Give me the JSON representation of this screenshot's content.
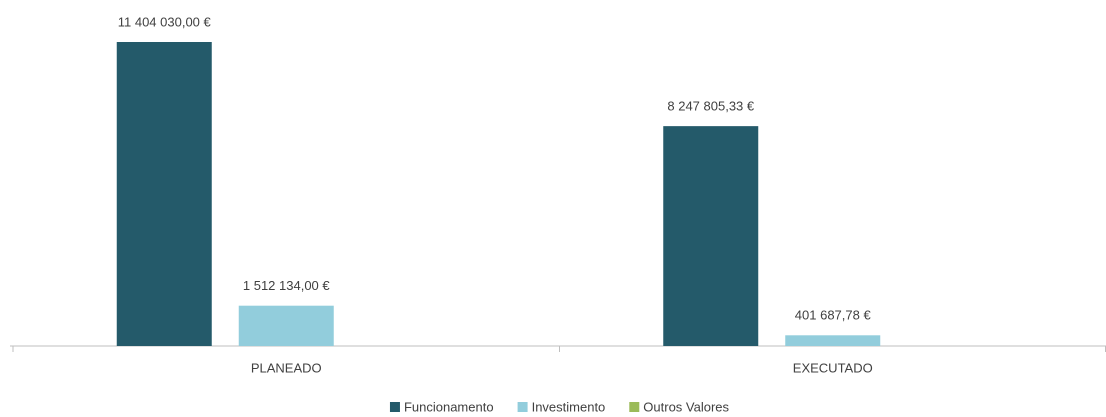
{
  "chart_data": {
    "type": "bar",
    "categories": [
      "PLANEADO",
      "EXECUTADO"
    ],
    "series": [
      {
        "name": "Funcionamento",
        "color": "#245a6a",
        "values": [
          11404030.0,
          8247805.33
        ],
        "value_labels": [
          "11 404 030,00 €",
          "8 247 805,33 €"
        ]
      },
      {
        "name": "Investimento",
        "color": "#92cddc",
        "values": [
          1512134.0,
          401687.78
        ],
        "value_labels": [
          "1 512 134,00 €",
          "401 687,78 €"
        ]
      },
      {
        "name": "Outros Valores",
        "color": "#9bbb59",
        "values": [
          0,
          0
        ]
      }
    ],
    "legend": "bottom"
  }
}
